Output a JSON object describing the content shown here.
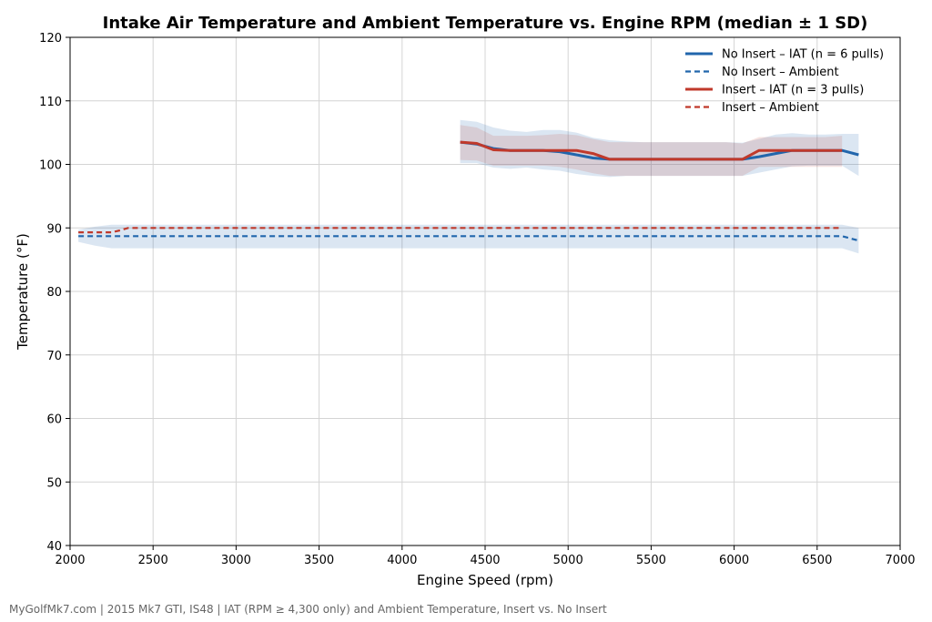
{
  "chart_data": {
    "type": "line",
    "title": "Intake Air Temperature and Ambient Temperature vs. Engine RPM (median ± 1 SD)",
    "xlabel": "Engine Speed (rpm)",
    "ylabel": "Temperature (°F)",
    "xlim": [
      2000,
      7000
    ],
    "ylim": [
      40,
      120
    ],
    "xticks": [
      2000,
      2500,
      3000,
      3500,
      4000,
      4500,
      5000,
      5500,
      6000,
      6500,
      7000
    ],
    "yticks": [
      40,
      50,
      60,
      70,
      80,
      90,
      100,
      110,
      120
    ],
    "grid": true,
    "legend_position": "top-right",
    "series": [
      {
        "name": "No Insert – IAT (n = 6 pulls)",
        "color": "#2166ac",
        "style": "solid",
        "x": [
          4350,
          4450,
          4550,
          4650,
          4750,
          4850,
          4950,
          5050,
          5150,
          5250,
          5350,
          5450,
          5550,
          5650,
          5750,
          5850,
          5950,
          6050,
          6150,
          6250,
          6350,
          6450,
          6550,
          6650,
          6750
        ],
        "y": [
          103.5,
          103.2,
          102.5,
          102.2,
          102.2,
          102.2,
          102.0,
          101.5,
          101.0,
          100.8,
          100.8,
          100.8,
          100.8,
          100.8,
          100.8,
          100.8,
          100.8,
          100.8,
          101.2,
          101.7,
          102.2,
          102.2,
          102.2,
          102.2,
          101.5
        ],
        "lower": [
          100.2,
          100.2,
          99.5,
          99.3,
          99.5,
          99.2,
          99.0,
          98.5,
          98.2,
          98.0,
          98.2,
          98.2,
          98.2,
          98.2,
          98.2,
          98.2,
          98.2,
          98.2,
          98.7,
          99.2,
          99.7,
          99.8,
          99.8,
          99.8,
          98.2
        ],
        "upper": [
          107.0,
          106.7,
          105.8,
          105.3,
          105.1,
          105.4,
          105.4,
          105.0,
          104.2,
          103.8,
          103.6,
          103.5,
          103.5,
          103.5,
          103.5,
          103.5,
          103.5,
          103.4,
          104.0,
          104.7,
          104.9,
          104.7,
          104.7,
          104.8,
          104.8
        ]
      },
      {
        "name": "No Insert – Ambient",
        "color": "#2166ac",
        "style": "dashed",
        "x": [
          2050,
          2150,
          2250,
          2350,
          2450,
          3000,
          3500,
          4000,
          4500,
          5000,
          5500,
          6000,
          6500,
          6650,
          6750
        ],
        "y": [
          88.7,
          88.7,
          88.7,
          88.7,
          88.7,
          88.7,
          88.7,
          88.7,
          88.7,
          88.7,
          88.7,
          88.7,
          88.7,
          88.7,
          88.0
        ],
        "lower": [
          87.8,
          87.2,
          86.8,
          86.8,
          86.8,
          86.8,
          86.8,
          86.8,
          86.8,
          86.8,
          86.8,
          86.8,
          86.8,
          86.8,
          86.0
        ],
        "upper": [
          89.7,
          90.2,
          90.5,
          90.5,
          90.5,
          90.5,
          90.5,
          90.5,
          90.5,
          90.5,
          90.5,
          90.5,
          90.5,
          90.5,
          90.0
        ]
      },
      {
        "name": "Insert – IAT (n = 3 pulls)",
        "color": "#c0392b",
        "style": "solid",
        "x": [
          4350,
          4450,
          4550,
          4650,
          4750,
          4850,
          4950,
          5050,
          5150,
          5250,
          5350,
          5450,
          5550,
          5650,
          5750,
          5850,
          5950,
          6050,
          6150,
          6250,
          6350,
          6450,
          6550,
          6650
        ],
        "y": [
          103.5,
          103.3,
          102.3,
          102.2,
          102.2,
          102.2,
          102.2,
          102.2,
          101.7,
          100.8,
          100.8,
          100.8,
          100.8,
          100.8,
          100.8,
          100.8,
          100.8,
          100.8,
          102.2,
          102.2,
          102.2,
          102.2,
          102.2,
          102.2
        ],
        "lower": [
          100.7,
          100.6,
          99.8,
          99.8,
          99.8,
          99.8,
          99.6,
          99.2,
          98.6,
          98.2,
          98.2,
          98.2,
          98.2,
          98.2,
          98.2,
          98.2,
          98.2,
          98.2,
          99.6,
          99.6,
          99.6,
          99.6,
          99.6,
          99.6
        ],
        "upper": [
          106.2,
          105.8,
          104.5,
          104.5,
          104.5,
          104.6,
          104.8,
          104.6,
          104.0,
          103.5,
          103.5,
          103.5,
          103.5,
          103.5,
          103.5,
          103.5,
          103.5,
          103.3,
          104.3,
          104.3,
          104.3,
          104.3,
          104.3,
          104.5
        ]
      },
      {
        "name": "Insert – Ambient",
        "color": "#c0392b",
        "style": "dashed",
        "x": [
          2050,
          2150,
          2250,
          2300,
          2350,
          2450,
          3000,
          3500,
          4000,
          4500,
          5000,
          5500,
          6000,
          6500,
          6650
        ],
        "y": [
          89.3,
          89.3,
          89.3,
          89.6,
          90.0,
          90.0,
          90.0,
          90.0,
          90.0,
          90.0,
          90.0,
          90.0,
          90.0,
          90.0,
          90.0
        ]
      }
    ],
    "caption": "MyGolfMk7.com | 2015 Mk7 GTI, IS48 | IAT (RPM ≥ 4,300 only) and Ambient Temperature, Insert vs. No Insert"
  }
}
